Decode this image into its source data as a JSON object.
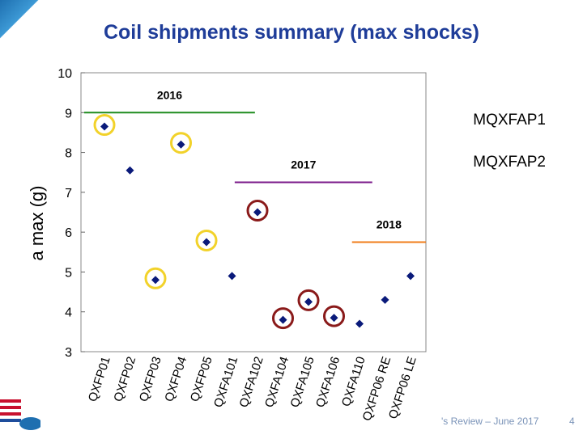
{
  "title": "Coil shipments summary (max shocks)",
  "legend_labels": [
    "MQXFAP1",
    "MQXFAP2"
  ],
  "footer": "'s Review – June 2017",
  "page_number": "4",
  "colors": {
    "title": "#1f3d99",
    "marker": "#0a1a7a",
    "line_2016": "#1e8c1e",
    "line_2017": "#7b1a8a",
    "line_2018": "#f07d1a",
    "ring_mqxfap1": "#f2d22a",
    "ring_mqxfap2": "#8a1a1a"
  },
  "chart_data": {
    "type": "scatter",
    "title": "Coil shipments summary (max shocks)",
    "ylabel": "a max (g)",
    "xlabel": "",
    "ylim": [
      3,
      10
    ],
    "yticks": [
      3,
      4,
      5,
      6,
      7,
      8,
      9,
      10
    ],
    "categories": [
      "QXFP01",
      "QXFP02",
      "QXFP03",
      "QXFP04",
      "QXFP05",
      "QXFA101",
      "QXFA102",
      "QXFA104",
      "QXFA105",
      "QXFA106",
      "QXFA110",
      "QXFP06 RE",
      "QXFP06 LE"
    ],
    "values": [
      8.65,
      7.55,
      4.8,
      8.2,
      5.75,
      4.9,
      6.5,
      3.8,
      4.25,
      3.85,
      3.7,
      4.3,
      4.9
    ],
    "highlight": [
      "MQXFAP1",
      "",
      "MQXFAP1",
      "MQXFAP1",
      "MQXFAP1",
      "",
      "MQXFAP2",
      "MQXFAP2",
      "MQXFAP2",
      "MQXFAP2",
      "",
      "",
      ""
    ],
    "reference_lines": [
      {
        "label": "2016",
        "y": 9.0,
        "from": 0,
        "to": 5.9
      },
      {
        "label": "2017",
        "y": 7.25,
        "from": 5.9,
        "to": 10.5
      },
      {
        "label": "2018",
        "y": 5.75,
        "from": 10.5,
        "to": 12.6
      }
    ],
    "grid": false
  }
}
